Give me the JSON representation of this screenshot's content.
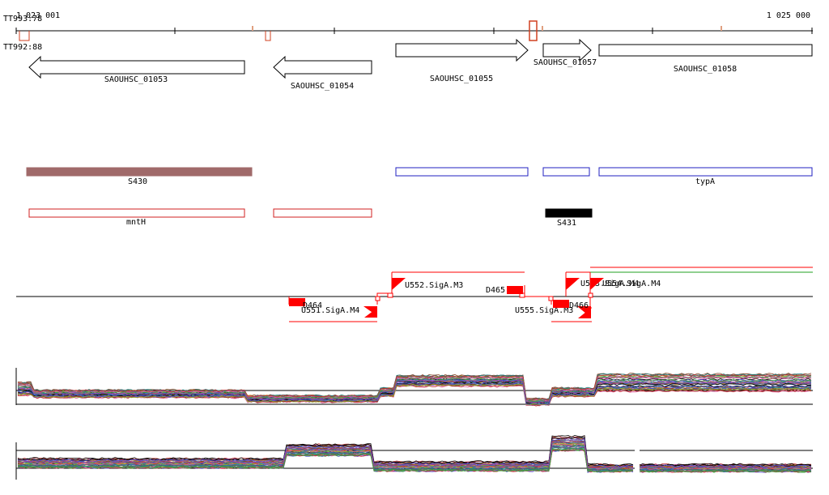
{
  "ruler": {
    "start_label": "1 023 001",
    "end_label": "1 025 000",
    "tick_count": 6
  },
  "transcription_markers": [
    {
      "label": "TT993:78"
    },
    {
      "label": "TT992:88"
    }
  ],
  "genes": [
    {
      "label": "SAOUHSC_01053",
      "strand": "-"
    },
    {
      "label": "SAOUHSC_01054",
      "strand": "-"
    },
    {
      "label": "SAOUHSC_01055",
      "strand": "+"
    },
    {
      "label": "SAOUHSC_01057",
      "strand": "+"
    },
    {
      "label": "SAOUHSC_01058",
      "strand": "+"
    }
  ],
  "features_row1": [
    {
      "label": "S430",
      "color": "#a06a6a",
      "filled": true
    },
    {
      "label": "",
      "color": "#2020c0",
      "filled": false
    },
    {
      "label": "",
      "color": "#2020c0",
      "filled": false
    },
    {
      "label": "typA",
      "color": "#2020c0",
      "filled": false
    }
  ],
  "features_row2": [
    {
      "label": "mntH",
      "color": "#d02020",
      "filled": false
    },
    {
      "label": "",
      "color": "#d02020",
      "filled": false
    },
    {
      "label": "S431",
      "color": "#000000",
      "filled": true
    }
  ],
  "promoters": [
    {
      "label": "D464",
      "kind": "downregulated"
    },
    {
      "label": "U551.SigA.M4",
      "kind": "upstream"
    },
    {
      "label": "U552.SigA.M3",
      "kind": "upstream"
    },
    {
      "label": "D465",
      "kind": "downregulated"
    },
    {
      "label": "U555.SigA.M3",
      "kind": "upstream"
    },
    {
      "label": "D466",
      "kind": "downregulated"
    },
    {
      "label": "U553.SigA.M4",
      "kind": "upstream"
    },
    {
      "label": "U554.SigA.M4",
      "kind": "upstream"
    }
  ],
  "colors": {
    "strand_line": "#000000",
    "feature_red": "#ff0000",
    "feature_blue": "#2020c0",
    "promoter_green": "#20a020",
    "expression_palette": [
      "#c03030",
      "#3070c0",
      "#40a040",
      "#a040a0",
      "#d08020",
      "#208080",
      "#804020",
      "#606060",
      "#e060a0",
      "#90b030",
      "#000000",
      "#5050d0"
    ]
  }
}
